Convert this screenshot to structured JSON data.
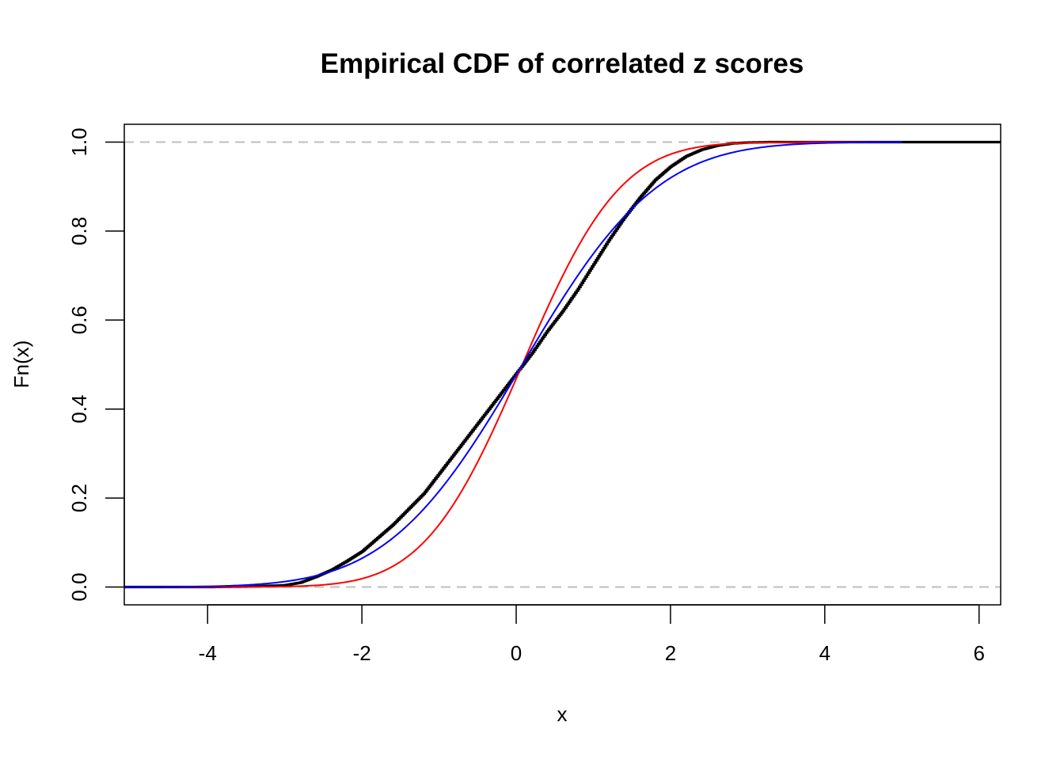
{
  "chart_data": {
    "type": "line",
    "title": "Empirical CDF of correlated z scores",
    "xlabel": "x",
    "ylabel": "Fn(x)",
    "xlim": [
      -5.08,
      6.28
    ],
    "ylim": [
      -0.04,
      1.04
    ],
    "x_ticks": [
      -4,
      -2,
      0,
      2,
      4,
      6
    ],
    "y_ticks": [
      0.0,
      0.2,
      0.4,
      0.6,
      0.8,
      1.0
    ],
    "x_tick_labels": [
      "-4",
      "-2",
      "0",
      "2",
      "4",
      "6"
    ],
    "y_tick_labels": [
      "0.0",
      "0.2",
      "0.4",
      "0.6",
      "0.8",
      "1.0"
    ],
    "reference_lines": [
      {
        "y": 0.0,
        "color": "#bebebe",
        "style": "dashed"
      },
      {
        "y": 1.0,
        "color": "#bebebe",
        "style": "dashed"
      }
    ],
    "series": [
      {
        "color": "#000000",
        "kind": "ecdf",
        "x": [
          -5.08,
          -4.0,
          -3.5,
          -3.0,
          -2.8,
          -2.6,
          -2.4,
          -2.2,
          -2.0,
          -1.8,
          -1.6,
          -1.4,
          -1.2,
          -1.0,
          -0.8,
          -0.6,
          -0.4,
          -0.2,
          0.0,
          0.2,
          0.4,
          0.6,
          0.8,
          1.0,
          1.2,
          1.4,
          1.6,
          1.8,
          2.0,
          2.2,
          2.4,
          2.6,
          2.8,
          3.0,
          3.3,
          3.6,
          4.0,
          5.0,
          6.28
        ],
        "y": [
          0.0,
          0.0,
          0.001,
          0.004,
          0.01,
          0.023,
          0.038,
          0.058,
          0.08,
          0.11,
          0.14,
          0.175,
          0.21,
          0.255,
          0.3,
          0.345,
          0.39,
          0.435,
          0.48,
          0.525,
          0.575,
          0.62,
          0.67,
          0.725,
          0.78,
          0.83,
          0.875,
          0.915,
          0.945,
          0.968,
          0.983,
          0.992,
          0.997,
          0.999,
          1.0,
          1.0,
          1.0,
          1.0,
          1.0
        ]
      },
      {
        "color": "#ff0000",
        "kind": "normal_cdf",
        "mean": 0.08,
        "sd": 1.0,
        "x_range": [
          -5.08,
          5.0
        ]
      },
      {
        "color": "#0000ff",
        "kind": "normal_cdf",
        "mean": 0.08,
        "sd": 1.37,
        "x_range": [
          -5.08,
          5.0
        ]
      }
    ]
  }
}
